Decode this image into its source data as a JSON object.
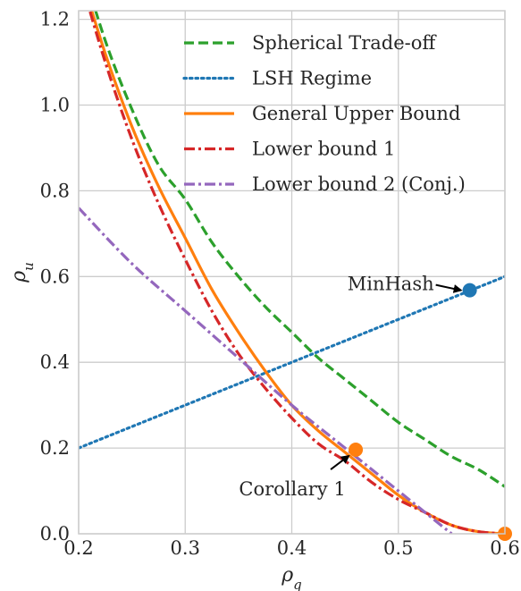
{
  "chart_data": {
    "type": "line",
    "title": "",
    "xlabel": "ρ_q",
    "ylabel": "ρ_u",
    "xlim": [
      0.2,
      0.6
    ],
    "ylim": [
      0.0,
      1.22
    ],
    "xticks": [
      0.2,
      0.3,
      0.4,
      0.5,
      0.6
    ],
    "xtick_labels": [
      "0.2",
      "0.3",
      "0.4",
      "0.5",
      "0.6"
    ],
    "yticks": [
      0.0,
      0.2,
      0.4,
      0.6,
      0.8,
      1.0,
      1.2
    ],
    "ytick_labels": [
      "0.0",
      "0.2",
      "0.4",
      "0.6",
      "0.8",
      "1.0",
      "1.2"
    ],
    "grid": true,
    "legend_position": "top-right",
    "series": [
      {
        "name": "Spherical Trade-off",
        "color": "#2ca02c",
        "dash": "dashed",
        "x": [
          0.2,
          0.225,
          0.25,
          0.275,
          0.3,
          0.325,
          0.35,
          0.375,
          0.4,
          0.425,
          0.45,
          0.475,
          0.5,
          0.525,
          0.55,
          0.575,
          0.6
        ],
        "y": [
          1.35,
          1.15,
          0.99,
          0.86,
          0.78,
          0.68,
          0.6,
          0.53,
          0.47,
          0.41,
          0.36,
          0.31,
          0.26,
          0.22,
          0.18,
          0.15,
          0.11
        ]
      },
      {
        "name": "LSH Regime",
        "color": "#1f77b4",
        "dash": "dotted",
        "x": [
          0.2,
          0.6
        ],
        "y": [
          0.2,
          0.6
        ]
      },
      {
        "name": "General Upper Bound",
        "color": "#ff7f0e",
        "dash": "solid",
        "x": [
          0.2,
          0.225,
          0.25,
          0.275,
          0.3,
          0.325,
          0.35,
          0.375,
          0.4,
          0.425,
          0.45,
          0.475,
          0.5,
          0.525,
          0.55,
          0.575,
          0.6
        ],
        "y": [
          1.32,
          1.12,
          0.95,
          0.81,
          0.69,
          0.57,
          0.47,
          0.38,
          0.3,
          0.24,
          0.19,
          0.14,
          0.09,
          0.05,
          0.02,
          0.005,
          0.0
        ]
      },
      {
        "name": "Lower bound 1",
        "color": "#d62728",
        "dash": "dashdot",
        "x": [
          0.2,
          0.225,
          0.25,
          0.275,
          0.3,
          0.325,
          0.35,
          0.375,
          0.4,
          0.425,
          0.45,
          0.475,
          0.5,
          0.525,
          0.55,
          0.575,
          0.6
        ],
        "y": [
          1.31,
          1.1,
          0.92,
          0.77,
          0.64,
          0.52,
          0.42,
          0.34,
          0.27,
          0.21,
          0.17,
          0.12,
          0.08,
          0.05,
          0.02,
          0.005,
          0.0
        ]
      },
      {
        "name": "Lower bound 2 (Conj.)",
        "color": "#9467bd",
        "dash": "dashdot",
        "x": [
          0.2,
          0.25,
          0.3,
          0.35,
          0.4,
          0.45,
          0.5,
          0.55
        ],
        "y": [
          0.76,
          0.63,
          0.52,
          0.41,
          0.3,
          0.2,
          0.1,
          0.0
        ]
      }
    ],
    "points": [
      {
        "name": "MinHash",
        "x": 0.567,
        "y": 0.568,
        "color": "#1f77b4",
        "label_side": "left"
      },
      {
        "name": "Corollary 1",
        "x": 0.46,
        "y": 0.196,
        "color": "#ff7f0e",
        "label_side": "below-left"
      },
      {
        "name": "",
        "x": 0.6,
        "y": 0.0,
        "color": "#ff7f0e",
        "label_side": "none"
      }
    ],
    "annotations": [
      {
        "text": "MinHash",
        "point_index": 0
      },
      {
        "text": "Corollary 1",
        "point_index": 1
      }
    ]
  }
}
